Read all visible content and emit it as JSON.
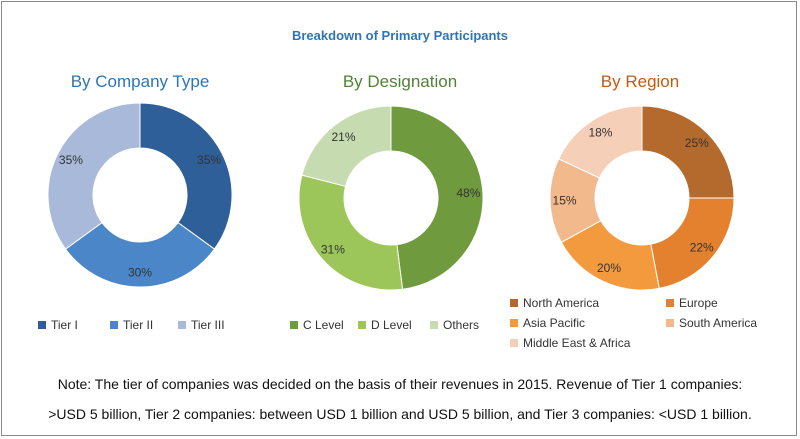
{
  "main_title": "Breakdown of Primary Participants",
  "chart_data": [
    {
      "type": "pie",
      "donut": true,
      "title": "By Company Type",
      "title_color": "#2e75b6",
      "slices": [
        {
          "label": "Tier I",
          "value": 35,
          "display": "35%",
          "color": "#2f5f98"
        },
        {
          "label": "Tier II",
          "value": 30,
          "display": "30%",
          "color": "#4a86c8"
        },
        {
          "label": "Tier III",
          "value": 35,
          "display": "35%",
          "color": "#a9b9d9"
        }
      ],
      "legend_position": "bottom"
    },
    {
      "type": "pie",
      "donut": true,
      "title": "By Designation",
      "title_color": "#538135",
      "slices": [
        {
          "label": "C Level",
          "value": 48,
          "display": "48%",
          "color": "#6f9a3e"
        },
        {
          "label": "D Level",
          "value": 31,
          "display": "31%",
          "color": "#9dc65a"
        },
        {
          "label": "Others",
          "value": 21,
          "display": "21%",
          "color": "#c7dbb0"
        }
      ],
      "legend_position": "bottom"
    },
    {
      "type": "pie",
      "donut": true,
      "title": "By Region",
      "title_color": "#c55a11",
      "slices": [
        {
          "label": "North America",
          "value": 25,
          "display": "25%",
          "color": "#b56a2d"
        },
        {
          "label": "Europe",
          "value": 22,
          "display": "22%",
          "color": "#e3812f"
        },
        {
          "label": "Asia Pacific",
          "value": 20,
          "display": "20%",
          "color": "#f39a3f"
        },
        {
          "label": "South America",
          "value": 15,
          "display": "15%",
          "color": "#f2b98c"
        },
        {
          "label": "Middle East & Africa",
          "value": 18,
          "display": "18%",
          "color": "#f6cfb8"
        }
      ],
      "legend_position": "bottom"
    }
  ],
  "note": {
    "line1": "Note: The tier of companies was decided on the basis of their revenues in 2015. Revenue of Tier 1 companies:",
    "line2": ">USD 5 billion, Tier 2 companies: between USD 1 billion and USD 5 billion, and Tier 3 companies: <USD 1 billion."
  }
}
